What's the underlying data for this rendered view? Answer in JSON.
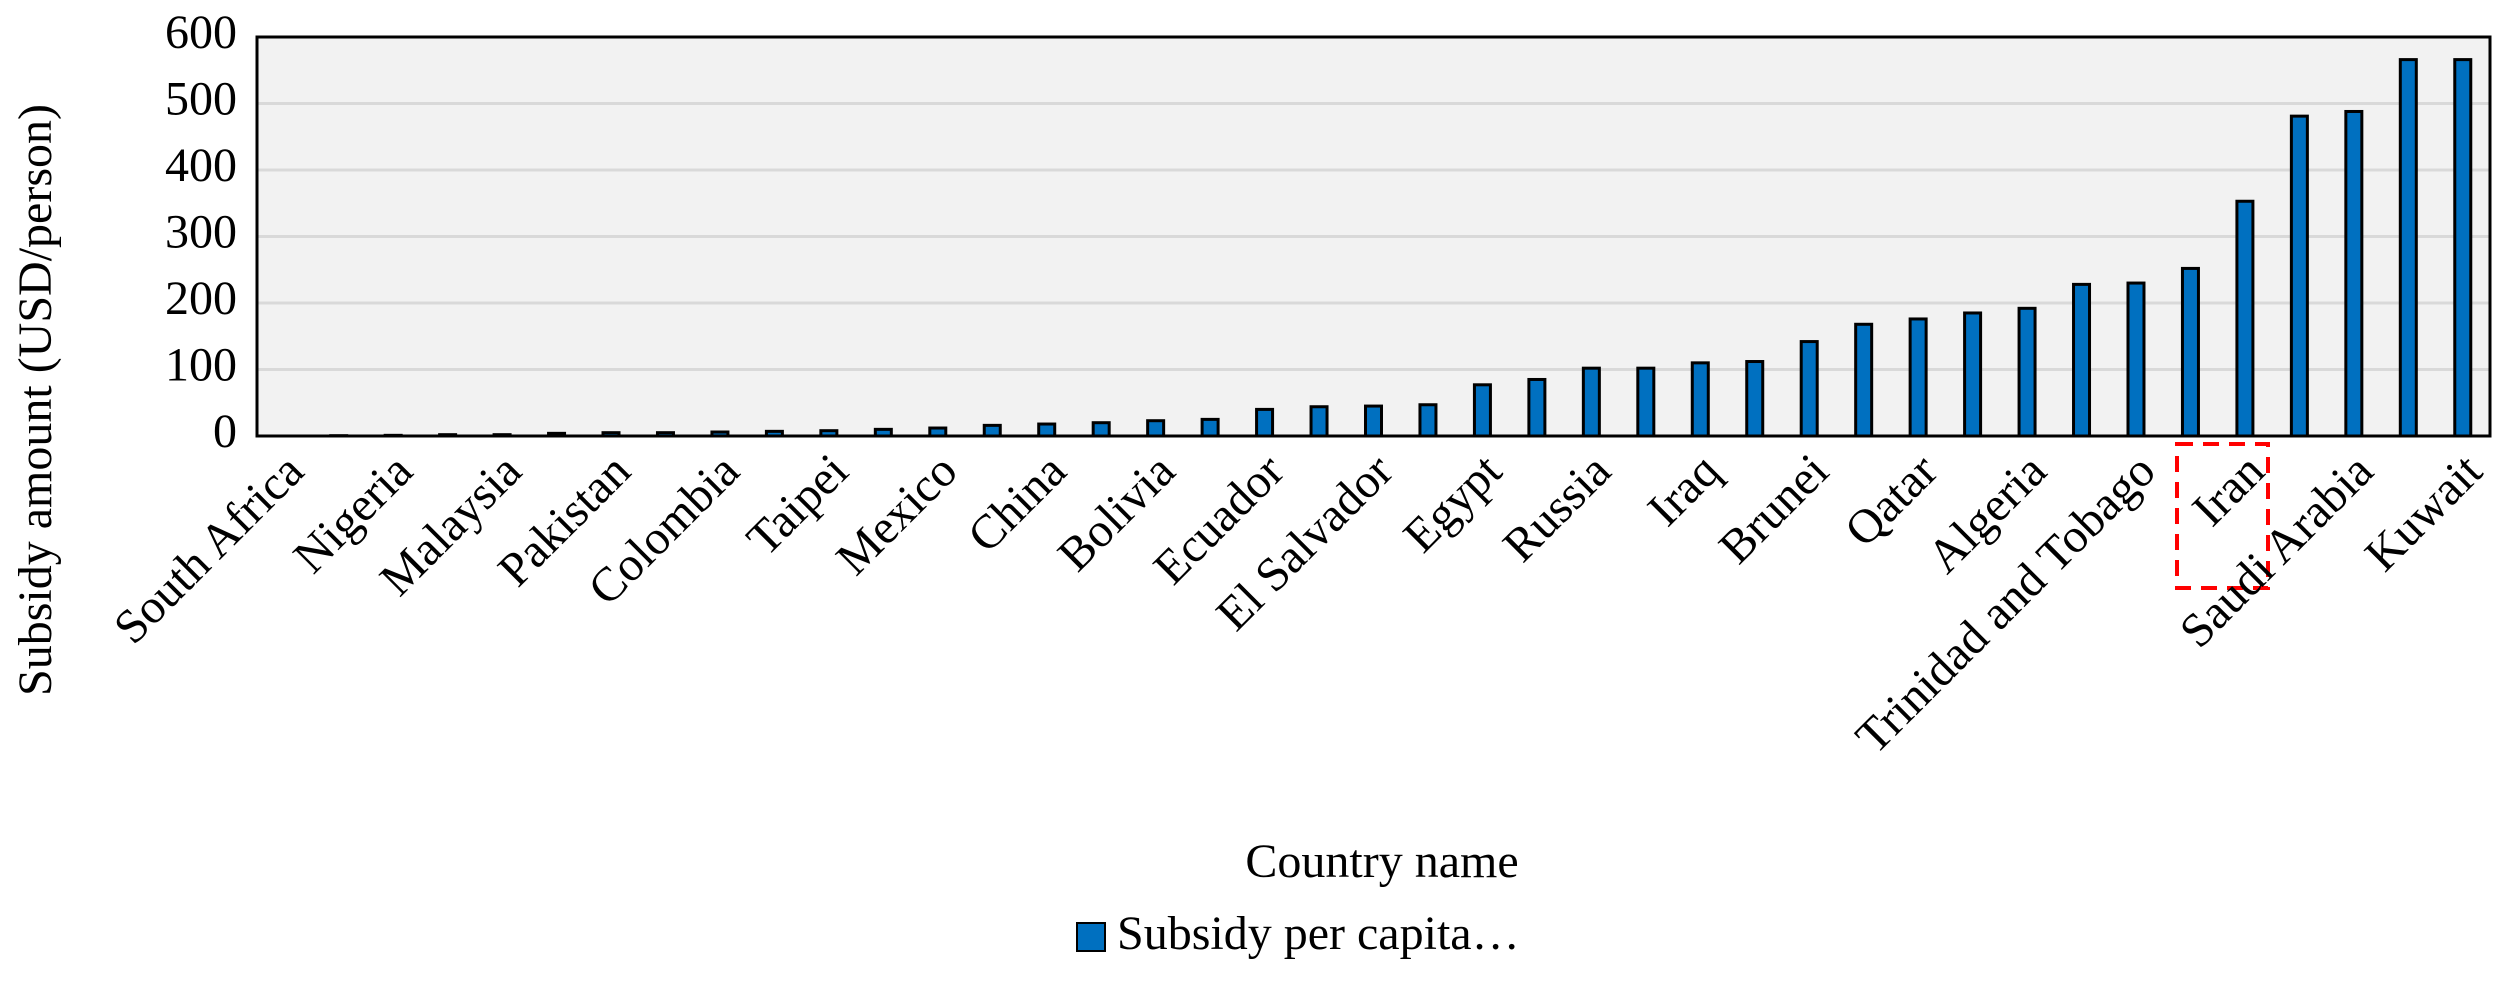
{
  "chart_data": {
    "type": "bar",
    "x_label": "Country name",
    "y_label": "Subsidy amount (USD/person)",
    "categories": [
      "South Africa",
      null,
      "Nigeria",
      null,
      "Malaysia",
      null,
      "Pakistan",
      null,
      "Colombia",
      null,
      "Taipei",
      null,
      "Mexico",
      null,
      "China",
      null,
      "Bolivia",
      null,
      "Ecuador",
      null,
      "El Salvador",
      null,
      "Egypt",
      null,
      "Russia",
      null,
      "Iraq",
      null,
      "Brunei",
      null,
      "Qatar",
      null,
      "Algeria",
      null,
      "Trinidad and Tobago",
      null,
      "Iran",
      null,
      "Saudi Arabia",
      null,
      "Kuwait"
    ],
    "series": [
      {
        "name": "Subsidy per capita…",
        "color": "#0070c0",
        "values": [
          0,
          0.5,
          1,
          2,
          2,
          4,
          5,
          5,
          6,
          7,
          8,
          10,
          12,
          16,
          18,
          20,
          23,
          25,
          40,
          44,
          45,
          47,
          77,
          85,
          102,
          102,
          110,
          112,
          142,
          168,
          176,
          185,
          192,
          228,
          230,
          252,
          353,
          481,
          488,
          566,
          566
        ]
      }
    ],
    "ylim": [
      0,
      600
    ],
    "yticks": [
      0,
      100,
      200,
      300,
      400,
      500,
      600
    ],
    "grid": true
  }
}
